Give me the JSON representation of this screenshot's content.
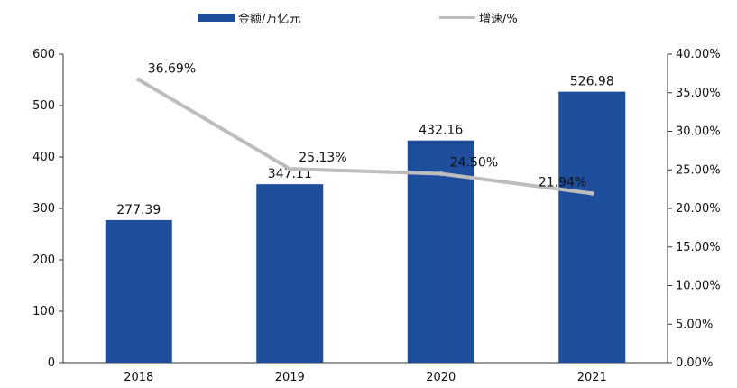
{
  "chart_data": {
    "type": "bar",
    "categories": [
      "2018",
      "2019",
      "2020",
      "2021"
    ],
    "series": [
      {
        "name": "金额/万亿元",
        "kind": "bar",
        "axis": "left",
        "values": [
          277.39,
          347.11,
          432.16,
          526.98
        ],
        "color": "#1f4e9c"
      },
      {
        "name": "增速/%",
        "kind": "line",
        "axis": "right",
        "values": [
          36.69,
          25.13,
          24.5,
          21.94
        ],
        "color": "#bdbdbd"
      }
    ],
    "bar_labels": [
      "277.39",
      "347.11",
      "432.16",
      "526.98"
    ],
    "line_labels": [
      "36.69%",
      "25.13%",
      "24.50%",
      "21.94%"
    ],
    "left_axis": {
      "min": 0,
      "max": 600,
      "ticks": [
        "0",
        "100",
        "200",
        "300",
        "400",
        "500",
        "600"
      ]
    },
    "right_axis": {
      "min": 0,
      "max": 40,
      "ticks": [
        "0.00%",
        "5.00%",
        "10.00%",
        "15.00%",
        "20.00%",
        "25.00%",
        "30.00%",
        "35.00%",
        "40.00%"
      ]
    },
    "grid": false,
    "legend_position": "top"
  }
}
